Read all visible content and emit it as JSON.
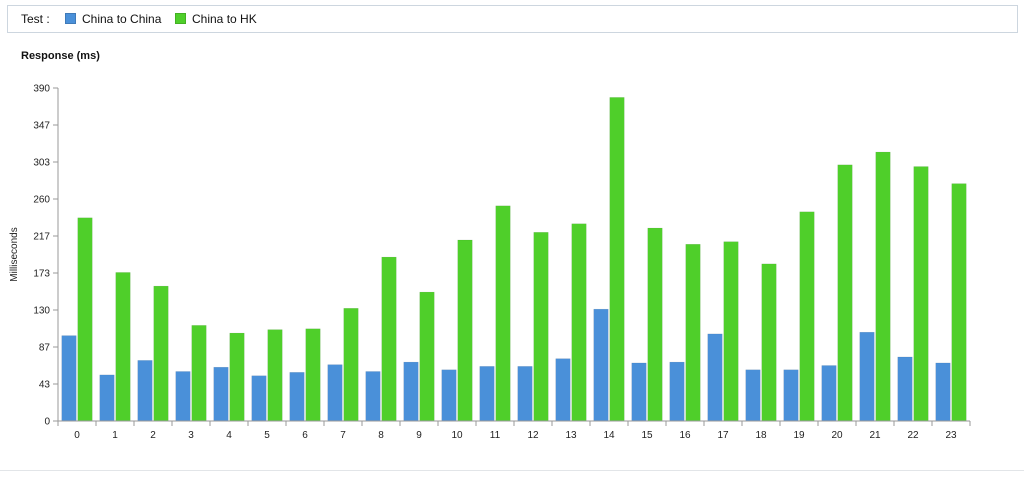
{
  "legend": {
    "label": "Test :",
    "entries": [
      {
        "name": "China to China",
        "color": "#4a90d9"
      },
      {
        "name": "China to HK",
        "color": "#4fcf2a"
      }
    ]
  },
  "chart_data": {
    "type": "bar",
    "title": "Response (ms)",
    "xlabel": "",
    "ylabel": "Milliseconds",
    "ylim": [
      0,
      390
    ],
    "yticks": [
      "0",
      "43",
      "87",
      "130",
      "173",
      "217",
      "260",
      "303",
      "347",
      "390"
    ],
    "ytick_values": [
      0,
      43.33,
      86.67,
      130,
      173.33,
      216.67,
      260,
      303.33,
      346.67,
      390
    ],
    "grid": false,
    "legend_position": "top",
    "categories": [
      "0",
      "1",
      "2",
      "3",
      "4",
      "5",
      "6",
      "7",
      "8",
      "9",
      "10",
      "11",
      "12",
      "13",
      "14",
      "15",
      "16",
      "17",
      "18",
      "19",
      "20",
      "21",
      "22",
      "23"
    ],
    "series": [
      {
        "name": "China to China",
        "color": "#4a90d9",
        "values": [
          100,
          54,
          71,
          58,
          63,
          53,
          57,
          66,
          58,
          69,
          60,
          64,
          64,
          73,
          131,
          68,
          69,
          102,
          60,
          60,
          65,
          104,
          75,
          68
        ]
      },
      {
        "name": "China to HK",
        "color": "#4fcf2a",
        "values": [
          238,
          174,
          158,
          112,
          103,
          107,
          108,
          132,
          192,
          151,
          212,
          252,
          221,
          231,
          379,
          226,
          207,
          210,
          184,
          245,
          300,
          315,
          298,
          278
        ]
      }
    ]
  }
}
